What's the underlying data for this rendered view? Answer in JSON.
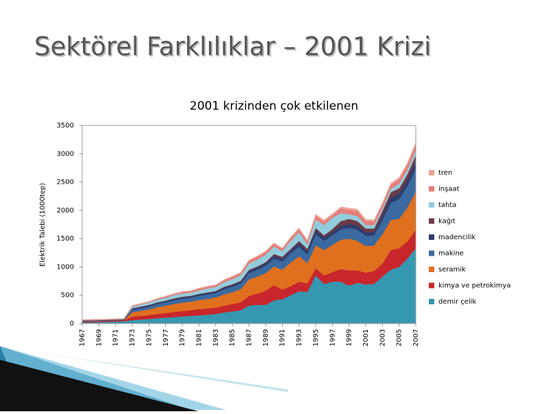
{
  "header": {
    "title": "Sektörel Farklılıklar – 2001 Krizi"
  },
  "chart_data": {
    "type": "stacked-area",
    "title": "2001 krizinden çok etkilenen",
    "y_label": "Elektrik Talebi (1000tep)",
    "x": [
      1967,
      1968,
      1969,
      1970,
      1971,
      1972,
      1973,
      1974,
      1975,
      1976,
      1977,
      1978,
      1979,
      1980,
      1981,
      1982,
      1983,
      1984,
      1985,
      1986,
      1987,
      1988,
      1989,
      1990,
      1991,
      1992,
      1993,
      1994,
      1995,
      1996,
      1997,
      1998,
      1999,
      2000,
      2001,
      2002,
      2003,
      2004,
      2005,
      2006,
      2007
    ],
    "xlim": [
      1967,
      2007
    ],
    "xticks": [
      1967,
      1969,
      1971,
      1973,
      1975,
      1977,
      1979,
      1981,
      1983,
      1985,
      1987,
      1989,
      1991,
      1993,
      1995,
      1997,
      1999,
      2001,
      2003,
      2005,
      2007
    ],
    "ylim": [
      0,
      3500
    ],
    "yticks": [
      0,
      500,
      1000,
      1500,
      2000,
      2500,
      3000,
      3500
    ],
    "series": [
      {
        "name": "demir çelik",
        "color": "#3598b0",
        "values": [
          20,
          22,
          25,
          30,
          35,
          40,
          60,
          70,
          80,
          95,
          105,
          115,
          125,
          135,
          145,
          155,
          170,
          195,
          215,
          235,
          320,
          330,
          330,
          410,
          430,
          500,
          570,
          560,
          850,
          700,
          740,
          740,
          670,
          720,
          690,
          700,
          830,
          950,
          1000,
          1150,
          1330
        ]
      },
      {
        "name": "kimya ve petrokimya",
        "color": "#c8262c",
        "values": [
          20,
          20,
          20,
          20,
          20,
          20,
          60,
          65,
          70,
          75,
          80,
          90,
          95,
          100,
          110,
          110,
          110,
          120,
          130,
          140,
          170,
          200,
          250,
          270,
          170,
          160,
          170,
          150,
          130,
          150,
          170,
          220,
          270,
          220,
          210,
          230,
          230,
          350,
          330,
          300,
          330
        ]
      },
      {
        "name": "seramik",
        "color": "#e0701e",
        "values": [
          0,
          0,
          0,
          0,
          0,
          0,
          80,
          90,
          100,
          120,
          130,
          140,
          150,
          150,
          160,
          170,
          180,
          200,
          210,
          230,
          290,
          300,
          310,
          330,
          350,
          420,
          450,
          360,
          400,
          450,
          480,
          520,
          560,
          520,
          470,
          450,
          520,
          530,
          520,
          600,
          680
        ]
      },
      {
        "name": "makine",
        "color": "#3a6aa0",
        "values": [
          5,
          5,
          5,
          5,
          5,
          5,
          40,
          45,
          50,
          55,
          60,
          65,
          70,
          70,
          75,
          80,
          80,
          90,
          95,
          100,
          110,
          120,
          130,
          140,
          150,
          160,
          170,
          150,
          200,
          160,
          170,
          180,
          190,
          200,
          180,
          180,
          250,
          300,
          350,
          380,
          400
        ]
      },
      {
        "name": "madencilik",
        "color": "#2f3d6e",
        "values": [
          5,
          5,
          5,
          5,
          5,
          5,
          20,
          20,
          20,
          20,
          20,
          25,
          25,
          25,
          25,
          25,
          25,
          30,
          30,
          35,
          40,
          40,
          45,
          50,
          50,
          50,
          60,
          60,
          70,
          60,
          60,
          70,
          70,
          70,
          60,
          60,
          80,
          100,
          100,
          110,
          130
        ]
      },
      {
        "name": "kağıt",
        "color": "#6b3a46",
        "values": [
          5,
          5,
          5,
          5,
          5,
          5,
          10,
          10,
          10,
          10,
          10,
          10,
          10,
          10,
          10,
          10,
          10,
          15,
          15,
          15,
          20,
          20,
          20,
          30,
          30,
          30,
          40,
          40,
          40,
          40,
          50,
          80,
          90,
          80,
          70,
          60,
          80,
          90,
          90,
          100,
          110
        ]
      },
      {
        "name": "tahta",
        "color": "#93cddd",
        "values": [
          5,
          5,
          5,
          5,
          5,
          5,
          30,
          35,
          40,
          45,
          50,
          55,
          55,
          55,
          60,
          70,
          70,
          80,
          90,
          100,
          110,
          120,
          130,
          130,
          100,
          140,
          150,
          80,
          150,
          180,
          200,
          140,
          80,
          90,
          60,
          60,
          50,
          60,
          80,
          80,
          90
        ]
      },
      {
        "name": "inşaat",
        "color": "#e57f7a",
        "values": [
          5,
          5,
          5,
          5,
          5,
          5,
          10,
          10,
          10,
          15,
          20,
          20,
          25,
          25,
          30,
          30,
          30,
          35,
          40,
          40,
          50,
          50,
          50,
          50,
          40,
          50,
          60,
          50,
          60,
          60,
          40,
          80,
          80,
          90,
          70,
          60,
          60,
          70,
          80,
          90,
          90
        ]
      },
      {
        "name": "tren",
        "color": "#eba394",
        "values": [
          5,
          5,
          5,
          5,
          5,
          5,
          10,
          10,
          10,
          10,
          10,
          10,
          10,
          10,
          10,
          10,
          10,
          10,
          10,
          10,
          15,
          15,
          15,
          15,
          15,
          20,
          20,
          20,
          30,
          30,
          30,
          30,
          30,
          30,
          30,
          30,
          30,
          30,
          30,
          30,
          40
        ]
      }
    ]
  }
}
